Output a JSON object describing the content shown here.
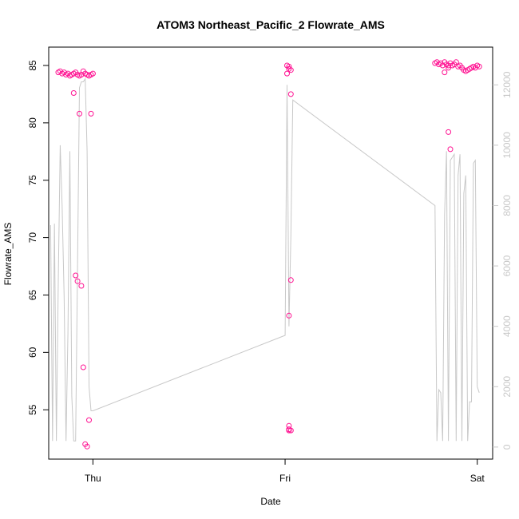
{
  "chart_data": {
    "type": "scatter",
    "title": "ATOM3 Northeast_Pacific_2 Flowrate_AMS",
    "xlabel": "Date",
    "ylabel": "Flowrate_AMS",
    "x_ticks": [
      {
        "value": 1.0,
        "label": "Thu"
      },
      {
        "value": 2.0,
        "label": "Fri"
      },
      {
        "value": 3.0,
        "label": "Sat"
      }
    ],
    "xlim": [
      0.77,
      3.08
    ],
    "ylim": [
      50.7,
      86.6
    ],
    "y_ticks": [
      55,
      60,
      65,
      70,
      75,
      80,
      85
    ],
    "y2lim": [
      -400,
      13250
    ],
    "y2_ticks": [
      0,
      2000,
      4000,
      6000,
      8000,
      10000,
      12000
    ],
    "colors": {
      "points": "#ff1493",
      "line": "#c8c8c8",
      "axis": "#000000",
      "axis2": "#c8c8c8"
    },
    "series": [
      {
        "kind": "points",
        "axis": "left",
        "x": [
          0.82,
          0.83,
          0.84,
          0.85,
          0.86,
          0.87,
          0.88,
          0.89,
          0.9,
          0.91,
          0.92,
          0.93,
          0.94,
          0.95,
          0.96,
          0.97,
          0.98,
          0.99,
          0.9,
          0.91,
          0.92,
          0.93,
          0.94,
          0.95,
          0.96,
          0.97,
          0.98,
          0.99,
          1.0,
          2.01,
          2.01,
          2.02,
          2.02,
          2.03,
          2.03,
          2.03,
          2.02,
          2.02,
          2.02,
          2.02,
          2.03,
          2.78,
          2.79,
          2.8,
          2.81,
          2.82,
          2.83,
          2.84,
          2.85,
          2.86,
          2.87,
          2.88,
          2.89,
          2.9,
          2.91,
          2.92,
          2.93,
          2.94,
          2.95,
          2.96,
          2.97,
          2.98,
          2.99,
          3.0,
          3.01,
          2.83,
          2.85,
          2.86,
          2.85
        ],
        "y": [
          84.4,
          84.5,
          84.3,
          84.4,
          84.2,
          84.3,
          84.1,
          84.2,
          84.3,
          84.4,
          84.2,
          84.1,
          84.2,
          84.5,
          84.3,
          84.2,
          84.1,
          84.2,
          82.6,
          66.7,
          66.2,
          80.8,
          65.8,
          58.7,
          52.0,
          51.8,
          54.1,
          80.8,
          84.3,
          85.0,
          84.3,
          84.9,
          84.7,
          84.6,
          82.5,
          66.3,
          63.2,
          53.6,
          53.3,
          53.2,
          53.2,
          85.2,
          85.3,
          85.1,
          85.2,
          85.0,
          85.3,
          85.1,
          84.8,
          85.2,
          85.0,
          85.1,
          85.3,
          84.9,
          85.0,
          84.8,
          84.6,
          84.5,
          84.6,
          84.7,
          84.8,
          84.9,
          84.8,
          85.0,
          84.9,
          84.4,
          79.2,
          77.7,
          85.0
        ]
      },
      {
        "kind": "line",
        "axis": "right",
        "x": [
          0.78,
          0.79,
          0.8,
          0.81,
          0.82,
          0.83,
          0.84,
          0.85,
          0.86,
          0.87,
          0.88,
          0.89,
          0.9,
          0.91,
          0.92,
          0.93,
          0.94,
          0.95,
          0.96,
          0.97,
          0.98,
          0.99,
          1.0,
          2.0,
          2.01,
          2.02,
          2.03,
          2.04,
          2.78,
          2.79,
          2.8,
          2.81,
          2.82,
          2.83,
          2.84,
          2.85,
          2.86,
          2.87,
          2.88,
          2.89,
          2.9,
          2.91,
          2.92,
          2.93,
          2.94,
          2.95,
          2.96,
          2.97,
          2.98,
          2.99,
          3.0,
          3.01
        ],
        "y": [
          7350,
          200,
          7400,
          200,
          5500,
          10000,
          8000,
          5000,
          200,
          3800,
          9800,
          1700,
          200,
          200,
          6000,
          11900,
          12100,
          12100,
          12200,
          9800,
          2000,
          1200,
          1200,
          3700,
          12000,
          4000,
          7000,
          11500,
          8000,
          200,
          1900,
          1800,
          200,
          7700,
          9800,
          200,
          9500,
          9600,
          9700,
          200,
          9000,
          9700,
          200,
          8400,
          9000,
          200,
          1500,
          1500,
          9400,
          9500,
          2000,
          1800
        ]
      }
    ]
  }
}
